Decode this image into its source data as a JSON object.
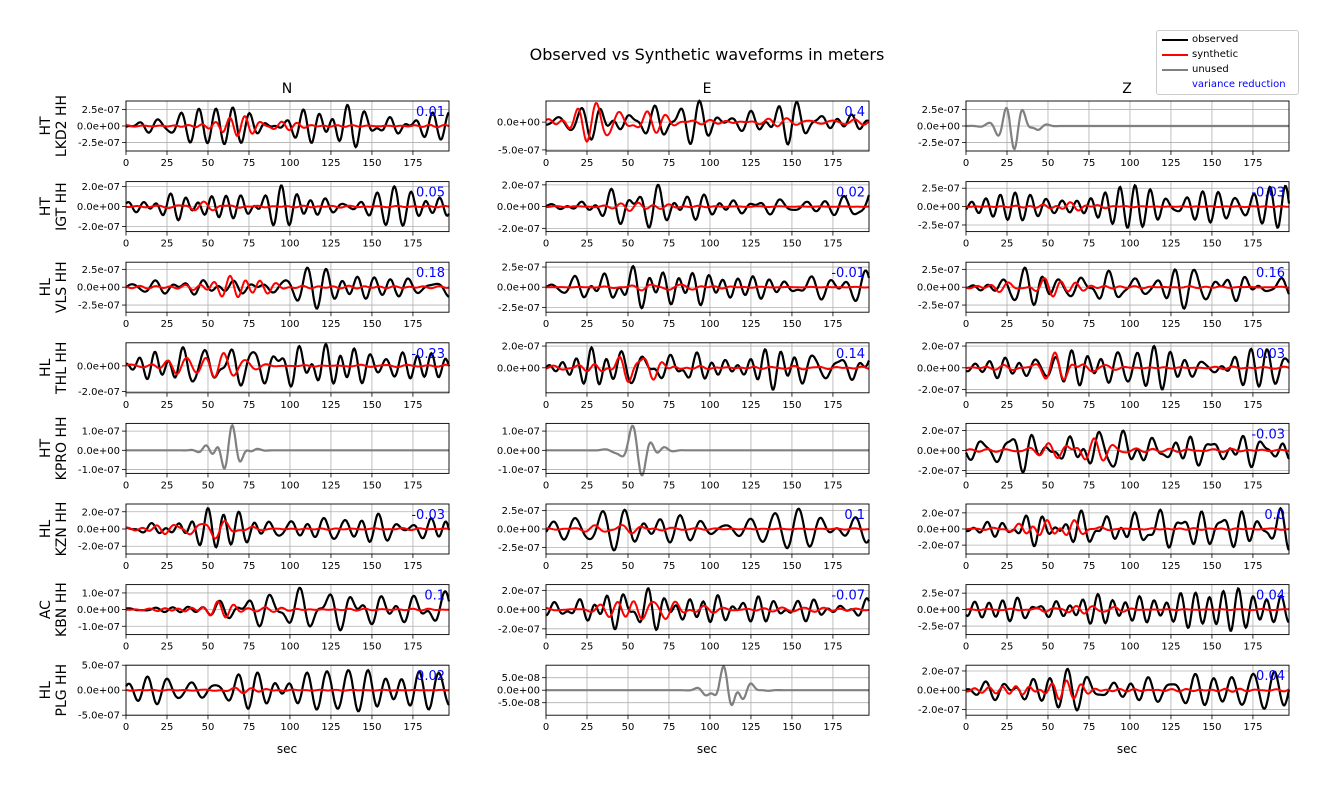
{
  "chart_data": {
    "type": "line",
    "title": "Observed vs Synthetic waveforms in meters",
    "xlabel": "sec",
    "xlim": [
      0,
      197
    ],
    "xticks": [
      0,
      25,
      50,
      75,
      100,
      125,
      150,
      175
    ],
    "columns": [
      "N",
      "E",
      "Z"
    ],
    "grid": true,
    "legend": {
      "location": "top-right",
      "entries": [
        {
          "label": "observed",
          "color": "#000000"
        },
        {
          "label": "synthetic",
          "color": "#ff0000"
        },
        {
          "label": "unused",
          "color": "#808080"
        },
        {
          "label": "variance reduction",
          "color": "#0000ff"
        }
      ]
    },
    "stations": [
      {
        "label": "HT\nLKD2 HH",
        "panels": [
          {
            "comp": "N",
            "status": "used",
            "vr": "0.01",
            "ylim": [
              -3.8e-07,
              3.8e-07
            ],
            "yticks": [
              "2.5e-07",
              "0.0e+00",
              "-2.5e-07"
            ],
            "ytick_vals": [
              2.5e-07,
              0,
              -2.5e-07
            ],
            "obs_amp": 3.2e-07,
            "syn_amp": 1.5e-07,
            "seed": 11
          },
          {
            "comp": "E",
            "status": "used",
            "vr": "0.4",
            "ylim": [
              -5.2e-07,
              3.8e-07
            ],
            "yticks": [
              "0.0e+00",
              "-5.0e-07"
            ],
            "ytick_vals": [
              0,
              -5e-07
            ],
            "obs_amp": 4e-07,
            "syn_amp": 3.5e-07,
            "seed": 12
          },
          {
            "comp": "Z",
            "status": "unused",
            "vr": "",
            "ylim": [
              -3.8e-07,
              3.8e-07
            ],
            "yticks": [
              "2.5e-07",
              "0.0e+00",
              "-2.5e-07"
            ],
            "ytick_vals": [
              2.5e-07,
              0,
              -2.5e-07
            ],
            "obs_amp": 3.5e-07,
            "syn_amp": 0,
            "seed": 13,
            "center": 30
          }
        ]
      },
      {
        "label": "HT\nIGT HH",
        "panels": [
          {
            "comp": "N",
            "status": "used",
            "vr": "0.05",
            "ylim": [
              -2.5e-07,
              2.5e-07
            ],
            "yticks": [
              "2.0e-07",
              "0.0e+00",
              "-2.0e-07"
            ],
            "ytick_vals": [
              2e-07,
              0,
              -2e-07
            ],
            "obs_amp": 2.1e-07,
            "syn_amp": 5e-08,
            "seed": 21
          },
          {
            "comp": "E",
            "status": "used",
            "vr": "0.02",
            "ylim": [
              -2.3e-07,
              2.3e-07
            ],
            "yticks": [
              "2.0e-07",
              "0.0e+00",
              "-2.0e-07"
            ],
            "ytick_vals": [
              2e-07,
              0,
              -2e-07
            ],
            "obs_amp": 2e-07,
            "syn_amp": 4e-08,
            "seed": 22
          },
          {
            "comp": "Z",
            "status": "used",
            "vr": "-0.03",
            "ylim": [
              -3.4e-07,
              3.4e-07
            ],
            "yticks": [
              "2.5e-07",
              "0.0e+00",
              "-2.5e-07"
            ],
            "ytick_vals": [
              2.5e-07,
              0,
              -2.5e-07
            ],
            "obs_amp": 2.9e-07,
            "syn_amp": 6e-08,
            "seed": 23
          }
        ]
      },
      {
        "label": "HL\nVLS HH",
        "panels": [
          {
            "comp": "N",
            "status": "used",
            "vr": "0.18",
            "ylim": [
              -3.5e-07,
              3.5e-07
            ],
            "yticks": [
              "2.5e-07",
              "0.0e+00",
              "-2.5e-07"
            ],
            "ytick_vals": [
              2.5e-07,
              0,
              -2.5e-07
            ],
            "obs_amp": 3e-07,
            "syn_amp": 1.6e-07,
            "seed": 31
          },
          {
            "comp": "E",
            "status": "used",
            "vr": "-0.01",
            "ylim": [
              -3.1e-07,
              3.1e-07
            ],
            "yticks": [
              "2.5e-07",
              "0.0e+00",
              "-2.5e-07"
            ],
            "ytick_vals": [
              2.5e-07,
              0,
              -2.5e-07
            ],
            "obs_amp": 2.6e-07,
            "syn_amp": 4e-08,
            "seed": 32
          },
          {
            "comp": "Z",
            "status": "used",
            "vr": "0.16",
            "ylim": [
              -3.5e-07,
              3.5e-07
            ],
            "yticks": [
              "2.5e-07",
              "0.0e+00",
              "-2.5e-07"
            ],
            "ytick_vals": [
              2.5e-07,
              0,
              -2.5e-07
            ],
            "obs_amp": 3e-07,
            "syn_amp": 1.3e-07,
            "seed": 33
          }
        ]
      },
      {
        "label": "HL\nTHL HH",
        "panels": [
          {
            "comp": "N",
            "status": "used",
            "vr": "-0.23",
            "ylim": [
              -2.1e-07,
              1.8e-07
            ],
            "yticks": [
              "0.0e+00",
              "-2.0e-07"
            ],
            "ytick_vals": [
              0,
              -2e-07
            ],
            "obs_amp": 1.7e-07,
            "syn_amp": 1e-07,
            "seed": 41
          },
          {
            "comp": "E",
            "status": "used",
            "vr": "0.14",
            "ylim": [
              -2.3e-07,
              2.3e-07
            ],
            "yticks": [
              "2.0e-07",
              "0.0e+00"
            ],
            "ytick_vals": [
              2e-07,
              0
            ],
            "obs_amp": 2e-07,
            "syn_amp": 1.3e-07,
            "seed": 42
          },
          {
            "comp": "Z",
            "status": "used",
            "vr": "0.03",
            "ylim": [
              -2.3e-07,
              2.3e-07
            ],
            "yticks": [
              "2.0e-07",
              "0.0e+00",
              "-2.0e-07"
            ],
            "ytick_vals": [
              2e-07,
              0,
              -2e-07
            ],
            "obs_amp": 2e-07,
            "syn_amp": 1.4e-07,
            "seed": 43
          }
        ]
      },
      {
        "label": "HT\nKPRO HH",
        "panels": [
          {
            "comp": "N",
            "status": "unused",
            "vr": "",
            "ylim": [
              -1.2e-07,
              1.4e-07
            ],
            "yticks": [
              "1.0e-07",
              "0.0e+00",
              "-1.0e-07"
            ],
            "ytick_vals": [
              1e-07,
              0,
              -1e-07
            ],
            "obs_amp": 1.3e-07,
            "syn_amp": 0,
            "seed": 51,
            "center": 62
          },
          {
            "comp": "E",
            "status": "unused",
            "vr": "",
            "ylim": [
              -1.2e-07,
              1.4e-07
            ],
            "yticks": [
              "1.0e-07",
              "0.0e+00",
              "-1.0e-07"
            ],
            "ytick_vals": [
              1e-07,
              0,
              -1e-07
            ],
            "obs_amp": 1.3e-07,
            "syn_amp": 0,
            "seed": 52,
            "center": 57
          },
          {
            "comp": "Z",
            "status": "used",
            "vr": "-0.03",
            "ylim": [
              -2.3e-07,
              2.7e-07
            ],
            "yticks": [
              "2.0e-07",
              "0.0e+00",
              "-2.0e-07"
            ],
            "ytick_vals": [
              2e-07,
              0,
              -2e-07
            ],
            "obs_amp": 2.2e-07,
            "syn_amp": 1.2e-07,
            "seed": 53
          }
        ]
      },
      {
        "label": "HL\nKZN HH",
        "panels": [
          {
            "comp": "N",
            "status": "used",
            "vr": "-0.03",
            "ylim": [
              -2.9e-07,
              2.9e-07
            ],
            "yticks": [
              "2.0e-07",
              "0.0e+00",
              "-2.0e-07"
            ],
            "ytick_vals": [
              2e-07,
              0,
              -2e-07
            ],
            "obs_amp": 2.4e-07,
            "syn_amp": 1.1e-07,
            "seed": 61
          },
          {
            "comp": "E",
            "status": "used",
            "vr": "0.1",
            "ylim": [
              -3.4e-07,
              3.4e-07
            ],
            "yticks": [
              "2.5e-07",
              "0.0e+00",
              "-2.5e-07"
            ],
            "ytick_vals": [
              2.5e-07,
              0,
              -2.5e-07
            ],
            "obs_amp": 2.9e-07,
            "syn_amp": 6e-08,
            "seed": 62
          },
          {
            "comp": "Z",
            "status": "used",
            "vr": "0.0",
            "ylim": [
              -3.1e-07,
              3.1e-07
            ],
            "yticks": [
              "2.0e-07",
              "0.0e+00",
              "-2.0e-07"
            ],
            "ytick_vals": [
              2e-07,
              0,
              -2e-07
            ],
            "obs_amp": 2.6e-07,
            "syn_amp": 1.1e-07,
            "seed": 63
          }
        ]
      },
      {
        "label": "AC\nKBN HH",
        "panels": [
          {
            "comp": "N",
            "status": "used",
            "vr": "0.1",
            "ylim": [
              -1.5e-07,
              1.5e-07
            ],
            "yticks": [
              "1.0e-07",
              "0.0e+00",
              "-1.0e-07"
            ],
            "ytick_vals": [
              1e-07,
              0,
              -1e-07
            ],
            "obs_amp": 1.3e-07,
            "syn_amp": 5e-08,
            "seed": 71
          },
          {
            "comp": "E",
            "status": "used",
            "vr": "-0.07",
            "ylim": [
              -2.6e-07,
              2.6e-07
            ],
            "yticks": [
              "2.0e-07",
              "0.0e+00",
              "-2.0e-07"
            ],
            "ytick_vals": [
              2e-07,
              0,
              -2e-07
            ],
            "obs_amp": 2.2e-07,
            "syn_amp": 1e-07,
            "seed": 72
          },
          {
            "comp": "Z",
            "status": "used",
            "vr": "0.04",
            "ylim": [
              -3.8e-07,
              3.8e-07
            ],
            "yticks": [
              "2.5e-07",
              "0.0e+00",
              "-2.5e-07"
            ],
            "ytick_vals": [
              2.5e-07,
              0,
              -2.5e-07
            ],
            "obs_amp": 3.2e-07,
            "syn_amp": 6e-08,
            "seed": 73
          }
        ]
      },
      {
        "label": "HL\nPLG HH",
        "panels": [
          {
            "comp": "N",
            "status": "used",
            "vr": "0.02",
            "ylim": [
              -5e-07,
              5e-07
            ],
            "yticks": [
              "5.0e-07",
              "0.0e+00",
              "-5.0e-07"
            ],
            "ytick_vals": [
              5e-07,
              0,
              -5e-07
            ],
            "obs_amp": 4.2e-07,
            "syn_amp": 6e-08,
            "seed": 81
          },
          {
            "comp": "E",
            "status": "unused",
            "vr": "",
            "ylim": [
              -1e-07,
              1e-07
            ],
            "yticks": [
              "5.0e-08",
              "0.0e+00",
              "-5.0e-08"
            ],
            "ytick_vals": [
              5e-08,
              0,
              -5e-08
            ],
            "obs_amp": 9.5e-08,
            "syn_amp": 0,
            "seed": 82,
            "center": 112
          },
          {
            "comp": "Z",
            "status": "used",
            "vr": "0.04",
            "ylim": [
              -2.6e-07,
              2.6e-07
            ],
            "yticks": [
              "2.0e-07",
              "0.0e+00",
              "-2.0e-07"
            ],
            "ytick_vals": [
              2e-07,
              0,
              -2e-07
            ],
            "obs_amp": 2.2e-07,
            "syn_amp": 1e-07,
            "seed": 83
          }
        ]
      }
    ]
  }
}
